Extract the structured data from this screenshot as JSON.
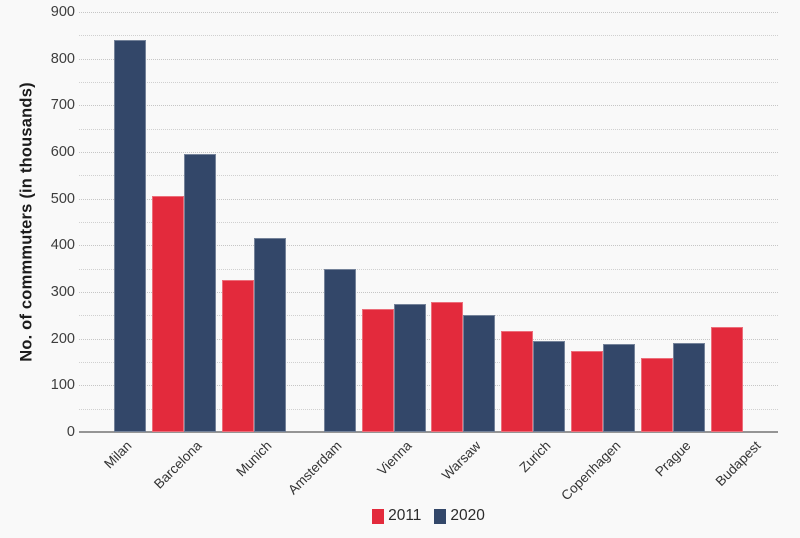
{
  "chart_data": {
    "type": "bar",
    "title": "",
    "ylabel": "No. of commmuters (in thousands)",
    "xlabel": "",
    "ylim": [
      0,
      900
    ],
    "ytick_step": 100,
    "grid_minor_step": 50,
    "grid": true,
    "legend_position": "bottom-center",
    "categories": [
      "Milan",
      "Barcelona",
      "Munich",
      "Amsterdam",
      "Vienna",
      "Warsaw",
      "Zurich",
      "Copenhagen",
      "Prague",
      "Budapest"
    ],
    "series": [
      {
        "name": "2011",
        "color": "#e32a3c",
        "values": [
          null,
          505,
          326,
          null,
          263,
          278,
          216,
          173,
          158,
          226
        ]
      },
      {
        "name": "2020",
        "color": "#334769",
        "values": [
          840,
          596,
          416,
          350,
          274,
          250,
          195,
          188,
          190,
          null
        ]
      }
    ]
  },
  "axis": {
    "yticks": [
      "900",
      "800",
      "700",
      "600",
      "500",
      "400",
      "300",
      "200",
      "100",
      "0"
    ]
  },
  "legend": {
    "items": [
      {
        "label": "2011",
        "color": "#e32a3c",
        "swatch_icon": "square-swatch-icon"
      },
      {
        "label": "2020",
        "color": "#334769",
        "swatch_icon": "square-swatch-icon"
      }
    ]
  },
  "colors": {
    "background": "#f9f9f9",
    "grid_major": "#c6c6c6",
    "grid_minor": "#d0d0d0",
    "axis_line": "#959595",
    "tick_text": "#3d3d3d",
    "category_text": "#333333",
    "axis_title_text": "#1c1c1c",
    "legend_text": "#2b2b2b",
    "series_2011": "#e32a3c",
    "series_2020": "#334769"
  }
}
